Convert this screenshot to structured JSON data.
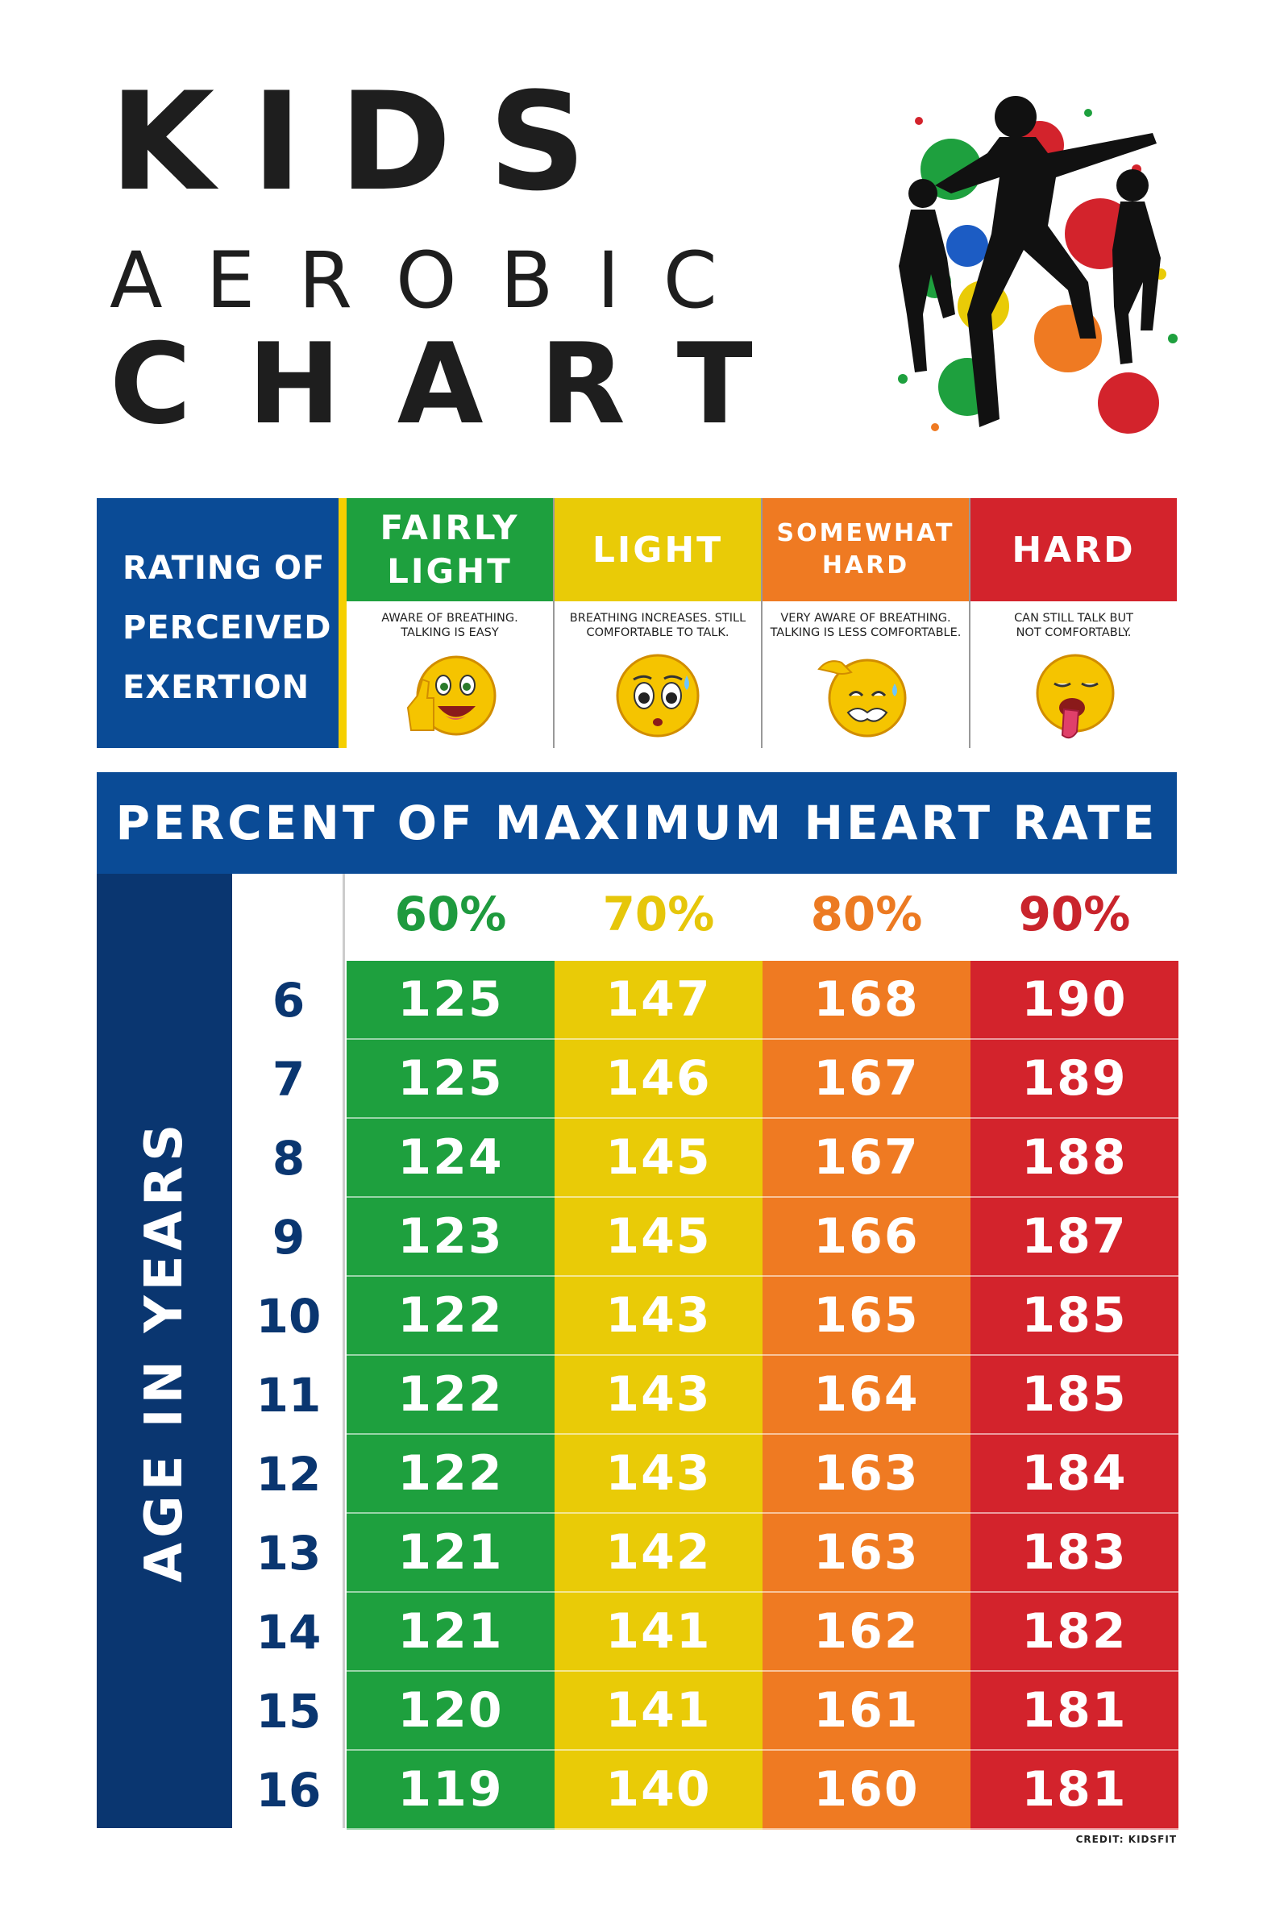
{
  "title": {
    "line1": "KIDS",
    "line2": "AEROBIC",
    "line3": "CHART"
  },
  "colors": {
    "blue": "#0a4b96",
    "navy": "#0a3670",
    "green": "#1ea03e",
    "yellow": "#e9cb07",
    "orange": "#ef7a22",
    "red": "#d3232c",
    "pct_green": "#1e9a3e",
    "pct_yellow": "#e6c60a",
    "pct_orange": "#ec7a22",
    "pct_red": "#c9242c"
  },
  "rpe": {
    "label_lines": [
      "RATING OF",
      "PERCEIVED",
      "EXERTION"
    ],
    "levels": [
      {
        "name_lines": [
          "FAIRLY",
          "LIGHT"
        ],
        "desc_lines": [
          "AWARE OF BREATHING.",
          "TALKING IS EASY"
        ],
        "icon": "thumbs-up-smiley-icon"
      },
      {
        "name_lines": [
          "LIGHT"
        ],
        "desc_lines": [
          "BREATHING INCREASES. STILL",
          "COMFORTABLE TO TALK."
        ],
        "icon": "worried-sweat-smiley-icon"
      },
      {
        "name_lines": [
          "SOMEWHAT",
          "HARD"
        ],
        "desc_lines": [
          "VERY AWARE OF BREATHING.",
          "TALKING IS LESS COMFORTABLE."
        ],
        "icon": "exhausted-smiley-icon"
      },
      {
        "name_lines": [
          "HARD"
        ],
        "desc_lines": [
          "CAN STILL TALK BUT",
          "NOT COMFORTABLY."
        ],
        "icon": "tongue-out-tired-smiley-icon"
      }
    ]
  },
  "chart_data": {
    "type": "table",
    "title": "PERCENT OF MAXIMUM HEART RATE",
    "row_header": "AGE IN YEARS",
    "columns": [
      "60%",
      "70%",
      "80%",
      "90%"
    ],
    "rows": [
      {
        "age": "6",
        "values": [
          125,
          147,
          168,
          190
        ]
      },
      {
        "age": "7",
        "values": [
          125,
          146,
          167,
          189
        ]
      },
      {
        "age": "8",
        "values": [
          124,
          145,
          167,
          188
        ]
      },
      {
        "age": "9",
        "values": [
          123,
          145,
          166,
          187
        ]
      },
      {
        "age": "10",
        "values": [
          122,
          143,
          165,
          185
        ]
      },
      {
        "age": "11",
        "values": [
          122,
          143,
          164,
          185
        ]
      },
      {
        "age": "12",
        "values": [
          122,
          143,
          163,
          184
        ]
      },
      {
        "age": "13",
        "values": [
          121,
          142,
          163,
          183
        ]
      },
      {
        "age": "14",
        "values": [
          121,
          141,
          162,
          182
        ]
      },
      {
        "age": "15",
        "values": [
          120,
          141,
          161,
          181
        ]
      },
      {
        "age": "16",
        "values": [
          119,
          140,
          160,
          181
        ]
      }
    ]
  },
  "credit": "CREDIT: KIDSFIT"
}
